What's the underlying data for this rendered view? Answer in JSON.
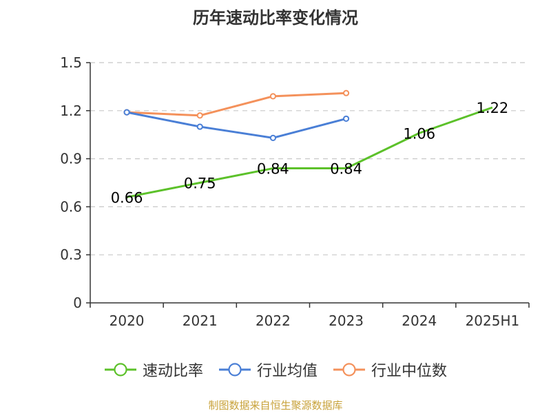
{
  "chart_data": {
    "type": "line",
    "title": "历年速动比率变化情况",
    "categories": [
      "2020",
      "2021",
      "2022",
      "2023",
      "2024",
      "2025H1"
    ],
    "ylim": [
      0,
      1.5
    ],
    "yticks": [
      "0",
      "0.3",
      "0.6",
      "0.9",
      "1.2",
      "1.5"
    ],
    "ytick_values": [
      0,
      0.3,
      0.6,
      0.9,
      1.2,
      1.5
    ],
    "grid": true,
    "legend_position": "bottom",
    "series": [
      {
        "name": "速动比率",
        "color": "#5cc12a",
        "values": [
          0.66,
          0.75,
          0.84,
          0.84,
          1.06,
          1.22
        ],
        "labels": [
          "0.66",
          "0.75",
          "0.84",
          "0.84",
          "1.06",
          "1.22"
        ],
        "show_markers": false
      },
      {
        "name": "行业均值",
        "color": "#4a7fd6",
        "values": [
          1.19,
          1.1,
          1.03,
          1.15,
          null,
          null
        ],
        "show_markers": true
      },
      {
        "name": "行业中位数",
        "color": "#f4915b",
        "values": [
          1.19,
          1.17,
          1.29,
          1.31,
          null,
          null
        ],
        "show_markers": true
      }
    ]
  },
  "source_text": "制图数据来自恒生聚源数据库"
}
